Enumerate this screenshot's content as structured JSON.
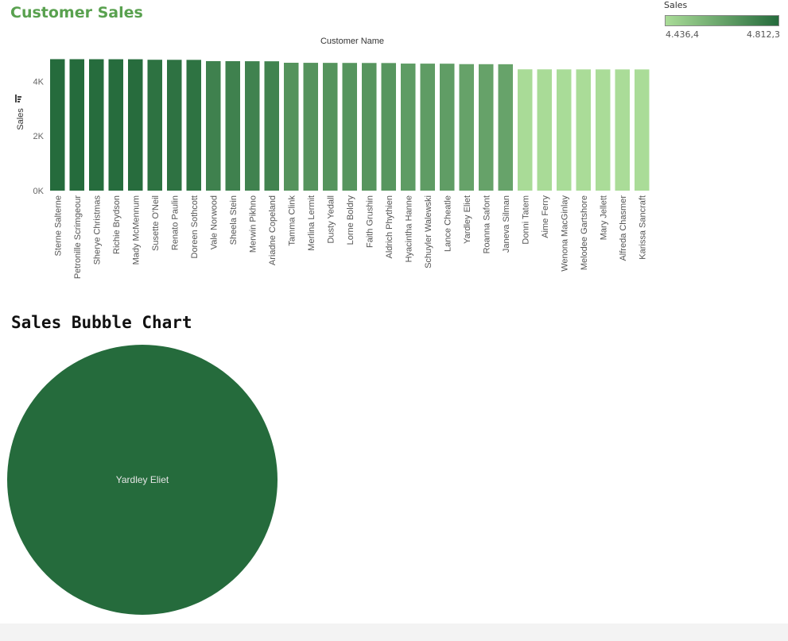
{
  "dashboard": {
    "title": "Customer Sales"
  },
  "legend": {
    "title": "Sales",
    "min_label": "4.436,4",
    "max_label": "4.812,3",
    "color_low": "#aadc98",
    "color_high": "#256b3c"
  },
  "chart_data": [
    {
      "type": "bar",
      "title": "",
      "xlabel": "Customer Name",
      "ylabel": "Sales",
      "ylim": [
        0,
        5000
      ],
      "yticks": [
        0,
        2000,
        4000
      ],
      "ytick_labels": [
        "0K",
        "2K",
        "4K"
      ],
      "categories": [
        "Sterne Salterne",
        "Petronille Scrimgeour",
        "Sherye Christmas",
        "Richie Brydson",
        "Mady McMennum",
        "Susette O'Neil",
        "Renato Paulin",
        "Doreen Sothcott",
        "Vale Norwood",
        "Sheela Stein",
        "Merwin Pikhno",
        "Ariadne Copeland",
        "Tamma Clink",
        "Merlina Lermit",
        "Dusty Yedall",
        "Lorne Boldry",
        "Faith Grushin",
        "Aldrich Phythien",
        "Hyacintha Hanne",
        "Schuyler Walewski",
        "Lance Cheatle",
        "Yardley Eliet",
        "Roanna Safont",
        "Janeva Silman",
        "Donni Tatem",
        "Aime Ferry",
        "Wenona MacGinlay",
        "Melodee Gartshore",
        "Mary Jellett",
        "Alfreda Chasmer",
        "Karissa Sancraft"
      ],
      "values": [
        4812.3,
        4811,
        4810,
        4809,
        4808,
        4790,
        4788,
        4786,
        4740,
        4738,
        4736,
        4734,
        4680,
        4678,
        4676,
        4674,
        4672,
        4670,
        4650,
        4648,
        4646,
        4630,
        4628,
        4626,
        4440,
        4439,
        4438,
        4437.5,
        4437,
        4436.8,
        4436.4
      ],
      "color_encoding": "Sales",
      "grid": false
    },
    {
      "type": "bubble",
      "title": "Sales Bubble Chart",
      "labels": [
        "Yardley Eliet"
      ],
      "values": [
        4630
      ],
      "color": "#256b3c"
    }
  ]
}
